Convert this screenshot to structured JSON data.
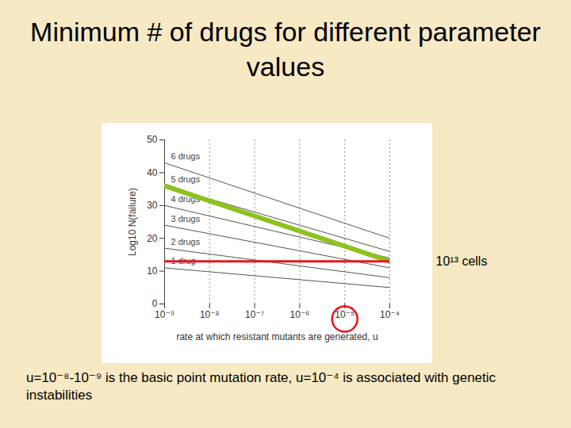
{
  "chart_data": {
    "type": "line",
    "title": "Minimum # of drugs for different parameter values",
    "caption": "u=10⁻⁸-10⁻⁹ is the basic point mutation rate, u=10⁻⁴ is associated with genetic instabilities",
    "x_label": "rate at which resistant mutants are generated, u",
    "y_label": "Log10 N(failure)",
    "log": "x",
    "grid": true,
    "x": [
      1e-09,
      0.0001
    ],
    "series": [
      {
        "name": "6 drugs",
        "color": "#555555",
        "values": [
          43,
          20
        ]
      },
      {
        "name": "5 drugs",
        "color": "#555555",
        "values": [
          36,
          16
        ]
      },
      {
        "name": "4 drugs",
        "color": "#555555",
        "values": [
          30,
          14
        ]
      },
      {
        "name": "3 drugs",
        "color": "#555555",
        "values": [
          24,
          11
        ]
      },
      {
        "name": "2 drugs",
        "color": "#555555",
        "values": [
          17,
          8
        ]
      },
      {
        "name": "1 drug",
        "color": "#555555",
        "values": [
          11,
          5
        ]
      }
    ],
    "highlight_line": {
      "color": "#8dc21f",
      "x": [
        1e-09,
        0.0001
      ],
      "values": [
        36,
        13
      ]
    },
    "reference_line": {
      "y": 13,
      "label": "10¹³ cells",
      "color": "#e8141b"
    },
    "highlight_tick": {
      "x": 1e-05,
      "color": "#e8141b"
    },
    "xlim": [
      1e-09,
      0.0001
    ],
    "xticks": [
      {
        "value": 1e-09,
        "label": "10⁻⁹"
      },
      {
        "value": 1e-08,
        "label": "10⁻⁸"
      },
      {
        "value": 1e-07,
        "label": "10⁻⁷"
      },
      {
        "value": 1e-06,
        "label": "10⁻⁶"
      },
      {
        "value": 1e-05,
        "label": "10⁻⁵"
      },
      {
        "value": 0.0001,
        "label": "10⁻⁴"
      }
    ],
    "ylim": [
      0,
      50
    ],
    "yticks": [
      0,
      10,
      20,
      30,
      40,
      50
    ]
  }
}
